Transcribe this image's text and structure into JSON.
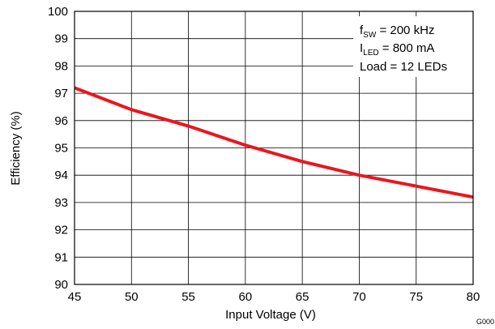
{
  "chart_data": {
    "type": "line",
    "title": "",
    "xlabel": "Input Voltage (V)",
    "ylabel": "Efficiency (%)",
    "xlim": [
      45,
      80
    ],
    "ylim": [
      90,
      100
    ],
    "x_ticks": [
      45,
      50,
      55,
      60,
      65,
      70,
      75,
      80
    ],
    "y_ticks": [
      90,
      91,
      92,
      93,
      94,
      95,
      96,
      97,
      98,
      99,
      100
    ],
    "grid": true,
    "series": [
      {
        "color": "#e8171f",
        "x": [
          45,
          50,
          55,
          60,
          65,
          70,
          75,
          80
        ],
        "y": [
          97.2,
          96.4,
          95.8,
          95.1,
          94.5,
          94.0,
          93.6,
          93.2
        ]
      }
    ],
    "annotations": {
      "fsw": {
        "main": "f",
        "sub": "SW",
        "rest": " = 200 kHz"
      },
      "iled": {
        "main": "I",
        "sub": "LED",
        "rest": " = 800 mA"
      },
      "load": "Load = 12 LEDs"
    },
    "figure_id": "G000"
  }
}
